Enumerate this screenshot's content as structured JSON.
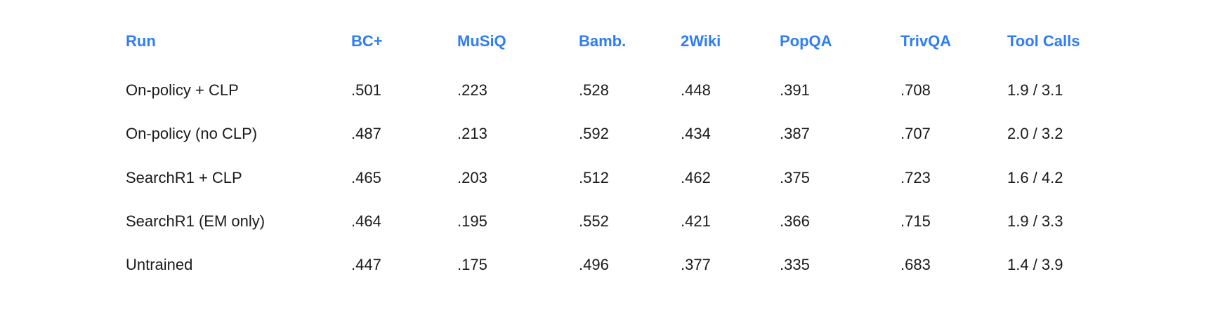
{
  "table": {
    "headers": [
      "Run",
      "BC+",
      "MuSiQ",
      "Bamb.",
      "2Wiki",
      "PopQA",
      "TrivQA",
      "Tool Calls"
    ],
    "rows": [
      [
        "On-policy + CLP",
        ".501",
        ".223",
        ".528",
        ".448",
        ".391",
        ".708",
        "1.9 / 3.1"
      ],
      [
        "On-policy (no CLP)",
        ".487",
        ".213",
        ".592",
        ".434",
        ".387",
        ".707",
        "2.0 / 3.2"
      ],
      [
        "SearchR1 + CLP",
        ".465",
        ".203",
        ".512",
        ".462",
        ".375",
        ".723",
        "1.6 / 4.2"
      ],
      [
        "SearchR1 (EM only)",
        ".464",
        ".195",
        ".552",
        ".421",
        ".366",
        ".715",
        "1.9 / 3.3"
      ],
      [
        "Untrained",
        ".447",
        ".175",
        ".496",
        ".377",
        ".335",
        ".683",
        "1.4 / 3.9"
      ]
    ]
  },
  "colors": {
    "header": "#2f7df6",
    "text": "#1a1a1a"
  }
}
